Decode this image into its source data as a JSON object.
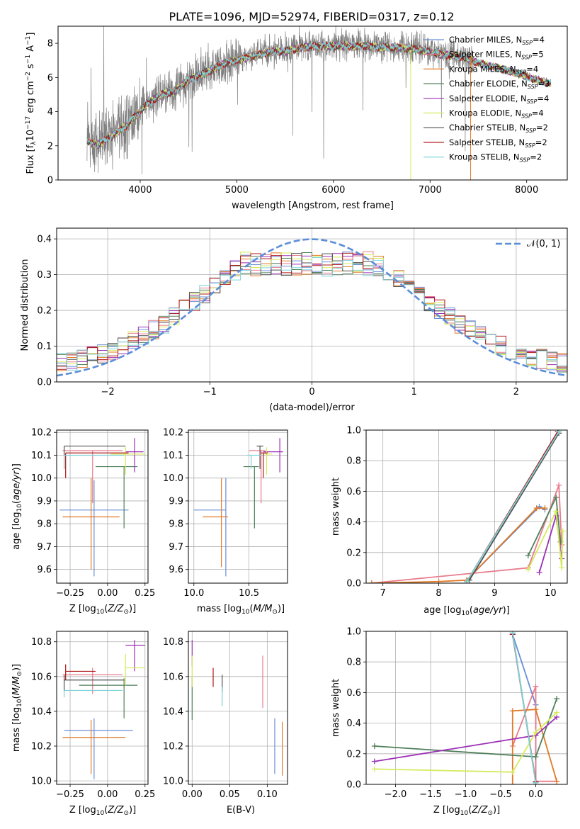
{
  "figure": {
    "title": "PLATE=1096, MJD=52974, FIBERID=0317, z=0.12"
  },
  "colors": {
    "Chabrier MILES": "#6a8fd8",
    "Salpeter MILES": "#e87b8c",
    "Kroupa MILES": "#e07a26",
    "Chabrier ELODIE": "#4f7f5a",
    "Salpeter ELODIE": "#9b30b5",
    "Kroupa ELODIE": "#d6ea5c",
    "Chabrier STELIB": "#505050",
    "Salpeter STELIB": "#b01616",
    "Kroupa STELIB": "#7fd3d8",
    "data": "#808080",
    "normal": "#5b8ed8"
  },
  "chart_data": [
    {
      "id": "spectrum",
      "type": "line",
      "xlabel": "wavelength [Angstrom, rest frame]",
      "ylabel": "Flux [f_λ 10^-17 erg cm^-2 s^-1 A^-1]",
      "xlim": [
        3150,
        8420
      ],
      "ylim": [
        0,
        9
      ],
      "xticks": [
        4000,
        5000,
        6000,
        7000,
        8000
      ],
      "yticks": [
        0,
        2,
        4,
        6,
        8
      ],
      "grid": false,
      "legend_position": "upper-right",
      "legend": [
        {
          "label": "Chabrier MILES, N_SSP=4",
          "key": "Chabrier MILES"
        },
        {
          "label": "Salpeter MILES, N_SSP=5",
          "key": "Salpeter MILES"
        },
        {
          "label": "Kroupa MILES, N_SSP=4",
          "key": "Kroupa MILES"
        },
        {
          "label": "Chabrier ELODIE, N_SSP=3",
          "key": "Chabrier ELODIE"
        },
        {
          "label": "Salpeter ELODIE, N_SSP=4",
          "key": "Salpeter ELODIE"
        },
        {
          "label": "Kroupa ELODIE, N_SSP=4",
          "key": "Kroupa ELODIE"
        },
        {
          "label": "Chabrier STELIB, N_SSP=2",
          "key": "Chabrier STELIB"
        },
        {
          "label": "Salpeter STELIB, N_SSP=2",
          "key": "Salpeter STELIB"
        },
        {
          "label": "Kroupa STELIB, N_SSP=2",
          "key": "Kroupa STELIB"
        }
      ],
      "continuum": {
        "x": [
          3450,
          3550,
          3650,
          3750,
          3850,
          3950,
          4050,
          4150,
          4250,
          4350,
          4500,
          4700,
          4900,
          5100,
          5300,
          5500,
          5700,
          5900,
          6100,
          6300,
          6500,
          6700,
          6900,
          7100,
          7300,
          7500,
          7700,
          7900,
          8100,
          8250
        ],
        "y": [
          2.3,
          2.1,
          2.4,
          2.8,
          3.2,
          3.8,
          4.4,
          4.8,
          5.1,
          5.2,
          5.9,
          6.4,
          6.9,
          7.2,
          7.5,
          7.6,
          7.8,
          7.9,
          7.9,
          7.9,
          7.8,
          7.8,
          7.7,
          7.4,
          7.3,
          6.9,
          6.6,
          6.3,
          5.9,
          5.7
        ]
      },
      "model_xrange": [
        3450,
        8250
      ],
      "data_xrange": [
        3450,
        7450
      ]
    },
    {
      "id": "residuals",
      "type": "histogram",
      "xlabel": "(data-model)/error",
      "ylabel": "Normed distribution",
      "xlim": [
        -2.5,
        2.5
      ],
      "ylim": [
        0,
        0.43
      ],
      "xticks": [
        -2,
        -1,
        0,
        1,
        2
      ],
      "yticks": [
        0.0,
        0.1,
        0.2,
        0.3,
        0.4
      ],
      "grid": true,
      "legend_position": "upper-right",
      "legend_label": "𝒩(0, 1)",
      "bin_width": 0.1,
      "normal": {
        "mean": 0,
        "sigma": 1
      }
    },
    {
      "id": "age-vs-Z",
      "type": "errorbar",
      "xlabel": "Z [log10(Z/Z⊙)]",
      "ylabel": "age [log10(age/yr)]",
      "xlim": [
        -0.34,
        0.27
      ],
      "ylim": [
        9.54,
        10.21
      ],
      "xticks": [
        -0.25,
        0.0,
        0.25
      ],
      "yticks": [
        9.6,
        9.7,
        9.8,
        9.9,
        10.0,
        10.1,
        10.2
      ],
      "grid": true,
      "points": [
        {
          "key": "Chabrier MILES",
          "x": -0.09,
          "y": 9.86,
          "xerr": [
            0.23,
            0.23
          ],
          "yerr": [
            0.29,
            0.13
          ]
        },
        {
          "key": "Salpeter MILES",
          "x": -0.1,
          "y": 10.12,
          "xerr": [
            0.2,
            0.2
          ],
          "yerr": [
            0.23,
            0.0
          ]
        },
        {
          "key": "Kroupa MILES",
          "x": -0.11,
          "y": 9.83,
          "xerr": [
            0.19,
            0.19
          ],
          "yerr": [
            0.23,
            0.17
          ]
        },
        {
          "key": "Chabrier ELODIE",
          "x": 0.11,
          "y": 10.05,
          "xerr": [
            0.19,
            0.09
          ],
          "yerr": [
            0.27,
            0.0
          ]
        },
        {
          "key": "Salpeter ELODIE",
          "x": 0.18,
          "y": 10.115,
          "xerr": [
            0.06,
            0.06
          ],
          "yerr": [
            0.09,
            0.06
          ]
        },
        {
          "key": "Kroupa ELODIE",
          "x": 0.12,
          "y": 10.105,
          "xerr": [
            0.1,
            0.13
          ],
          "yerr": [
            0.09,
            0.03
          ]
        },
        {
          "key": "Chabrier STELIB",
          "x": -0.29,
          "y": 10.14,
          "xerr": [
            0.0,
            0.41
          ],
          "yerr": [
            0.1,
            0.0
          ]
        },
        {
          "key": "Salpeter STELIB",
          "x": -0.28,
          "y": 10.11,
          "xerr": [
            0.0,
            0.42
          ],
          "yerr": [
            0.11,
            0.0
          ]
        },
        {
          "key": "Kroupa STELIB",
          "x": -0.29,
          "y": 10.1,
          "xerr": [
            0.0,
            0.4
          ],
          "yerr": [
            0.06,
            0.0
          ]
        }
      ]
    },
    {
      "id": "age-vs-mass",
      "type": "errorbar",
      "xlabel": "mass [log10(M/M⊙)]",
      "ylabel": "",
      "xlim": [
        9.95,
        10.85
      ],
      "ylim": [
        9.54,
        10.21
      ],
      "xticks": [
        10.0,
        10.5
      ],
      "yticks": [
        9.6,
        9.7,
        9.8,
        9.9,
        10.0,
        10.1,
        10.2
      ],
      "grid": true,
      "points": [
        {
          "key": "Chabrier MILES",
          "x": 10.29,
          "y": 9.86,
          "xerr": [
            0.29,
            0.0
          ],
          "yerr": [
            0.29,
            0.14
          ]
        },
        {
          "key": "Salpeter MILES",
          "x": 10.61,
          "y": 10.12,
          "xerr": [
            0.11,
            0.04
          ],
          "yerr": [
            0.23,
            0.0
          ]
        },
        {
          "key": "Kroupa MILES",
          "x": 10.25,
          "y": 9.83,
          "xerr": [
            0.17,
            0.06
          ],
          "yerr": [
            0.22,
            0.17
          ]
        },
        {
          "key": "Chabrier ELODIE",
          "x": 10.55,
          "y": 10.05,
          "xerr": [
            0.1,
            0.04
          ],
          "yerr": [
            0.27,
            0.0
          ]
        },
        {
          "key": "Salpeter ELODIE",
          "x": 10.78,
          "y": 10.115,
          "xerr": [
            0.15,
            0.03
          ],
          "yerr": [
            0.09,
            0.06
          ]
        },
        {
          "key": "Kroupa ELODIE",
          "x": 10.66,
          "y": 10.105,
          "xerr": [
            0.03,
            0.05
          ],
          "yerr": [
            0.09,
            0.03
          ]
        },
        {
          "key": "Chabrier STELIB",
          "x": 10.6,
          "y": 10.14,
          "xerr": [
            0.03,
            0.03
          ],
          "yerr": [
            0.1,
            0.0
          ]
        },
        {
          "key": "Salpeter STELIB",
          "x": 10.63,
          "y": 10.11,
          "xerr": [
            0.02,
            0.04
          ],
          "yerr": [
            0.11,
            0.0
          ]
        },
        {
          "key": "Kroupa STELIB",
          "x": 10.52,
          "y": 10.1,
          "xerr": [
            0.04,
            0.09
          ],
          "yerr": [
            0.06,
            0.0
          ]
        }
      ]
    },
    {
      "id": "weight-vs-age",
      "type": "line",
      "xlabel": "age [log10(age/yr)]",
      "ylabel": "mass weight",
      "xlim": [
        6.7,
        10.3
      ],
      "ylim": [
        0,
        1
      ],
      "xticks": [
        7,
        8,
        9,
        10
      ],
      "yticks": [
        0.0,
        0.2,
        0.4,
        0.6,
        0.8,
        1.0
      ],
      "grid": true,
      "series": [
        {
          "key": "Chabrier MILES",
          "x": [
            8.5,
            9.8,
            9.9
          ],
          "y": [
            0.02,
            0.5,
            0.48
          ]
        },
        {
          "key": "Salpeter MILES",
          "x": [
            6.8,
            9.6,
            10.15,
            10.2
          ],
          "y": [
            0.0,
            0.1,
            0.64,
            0.25
          ]
        },
        {
          "key": "Kroupa MILES",
          "x": [
            6.8,
            8.0,
            8.5,
            9.75,
            9.9
          ],
          "y": [
            0.0,
            0.01,
            0.02,
            0.49,
            0.49
          ]
        },
        {
          "key": "Chabrier ELODIE",
          "x": [
            9.6,
            10.1,
            10.18
          ],
          "y": [
            0.18,
            0.56,
            0.27
          ]
        },
        {
          "key": "Salpeter ELODIE",
          "x": [
            9.8,
            10.1,
            10.2
          ],
          "y": [
            0.07,
            0.44,
            0.16
          ]
        },
        {
          "key": "Kroupa ELODIE",
          "x": [
            9.6,
            10.1,
            10.2,
            10.22
          ],
          "y": [
            0.09,
            0.47,
            0.1,
            0.34
          ]
        },
        {
          "key": "Chabrier STELIB",
          "x": [
            8.55,
            10.15
          ],
          "y": [
            0.02,
            0.98
          ]
        },
        {
          "key": "Salpeter STELIB",
          "x": [
            8.5,
            10.13
          ],
          "y": [
            0.01,
            0.99
          ]
        },
        {
          "key": "Kroupa STELIB",
          "x": [
            8.5,
            10.15
          ],
          "y": [
            0.01,
            0.99
          ]
        }
      ]
    },
    {
      "id": "mass-vs-Z",
      "type": "errorbar",
      "xlabel": "Z [log10(Z/Z⊙)]",
      "ylabel": "mass [log10(M/M⊙)]",
      "xlim": [
        -0.34,
        0.27
      ],
      "ylim": [
        9.98,
        10.86
      ],
      "xticks": [
        -0.25,
        0.0,
        0.25
      ],
      "yticks": [
        10.0,
        10.2,
        10.4,
        10.6,
        10.8
      ],
      "grid": true,
      "points": [
        {
          "key": "Chabrier MILES",
          "x": -0.09,
          "y": 10.29,
          "xerr": [
            0.2,
            0.26
          ],
          "yerr": [
            0.28,
            0.07
          ]
        },
        {
          "key": "Salpeter MILES",
          "x": -0.1,
          "y": 10.61,
          "xerr": [
            0.2,
            0.2
          ],
          "yerr": [
            0.11,
            0.04
          ]
        },
        {
          "key": "Kroupa MILES",
          "x": -0.11,
          "y": 10.25,
          "xerr": [
            0.19,
            0.23
          ],
          "yerr": [
            0.21,
            0.1
          ]
        },
        {
          "key": "Chabrier ELODIE",
          "x": 0.11,
          "y": 10.55,
          "xerr": [
            0.3,
            0.09
          ],
          "yerr": [
            0.19,
            0.04
          ]
        },
        {
          "key": "Salpeter ELODIE",
          "x": 0.18,
          "y": 10.78,
          "xerr": [
            0.06,
            0.07
          ],
          "yerr": [
            0.15,
            0.03
          ]
        },
        {
          "key": "Kroupa ELODIE",
          "x": 0.12,
          "y": 10.65,
          "xerr": [
            0.0,
            0.13
          ],
          "yerr": [
            0.1,
            0.08
          ]
        },
        {
          "key": "Chabrier STELIB",
          "x": -0.29,
          "y": 10.58,
          "xerr": [
            0.0,
            0.4
          ],
          "yerr": [
            0.06,
            0.03
          ]
        },
        {
          "key": "Salpeter STELIB",
          "x": -0.28,
          "y": 10.63,
          "xerr": [
            0.0,
            0.2
          ],
          "yerr": [
            0.05,
            0.04
          ]
        },
        {
          "key": "Kroupa STELIB",
          "x": -0.29,
          "y": 10.52,
          "xerr": [
            0.0,
            0.39
          ],
          "yerr": [
            0.04,
            0.0
          ]
        }
      ]
    },
    {
      "id": "mass-vs-ebv",
      "type": "errorbar",
      "xlabel": "E(B-V)",
      "ylabel": "",
      "xlim": [
        -0.005,
        0.127
      ],
      "ylim": [
        9.98,
        10.86
      ],
      "xticks": [
        0.0,
        0.05,
        0.1
      ],
      "yticks": [
        10.0,
        10.2,
        10.4,
        10.6,
        10.8
      ],
      "grid": true,
      "points": [
        {
          "key": "Chabrier MILES",
          "x": 0.11,
          "y": 10.2,
          "xerr": [
            0,
            0
          ],
          "yerr": [
            0.16,
            0.16
          ]
        },
        {
          "key": "Salpeter MILES",
          "x": 0.094,
          "y": 10.58,
          "xerr": [
            0,
            0
          ],
          "yerr": [
            0.16,
            0.14
          ]
        },
        {
          "key": "Kroupa MILES",
          "x": 0.12,
          "y": 10.2,
          "xerr": [
            0,
            0
          ],
          "yerr": [
            0.17,
            0.14
          ]
        },
        {
          "key": "Chabrier ELODIE",
          "x": 0.0,
          "y": 10.45,
          "xerr": [
            0,
            0
          ],
          "yerr": [
            0.1,
            0.15
          ]
        },
        {
          "key": "Salpeter ELODIE",
          "x": 0.0,
          "y": 10.7,
          "xerr": [
            0,
            0
          ],
          "yerr": [
            0.04,
            0.11
          ]
        },
        {
          "key": "Kroupa ELODIE",
          "x": 0.0,
          "y": 10.6,
          "xerr": [
            0,
            0
          ],
          "yerr": [
            0.06,
            0.12
          ]
        },
        {
          "key": "Chabrier STELIB",
          "x": 0.04,
          "y": 10.55,
          "xerr": [
            0,
            0
          ],
          "yerr": [
            0.04,
            0.06
          ]
        },
        {
          "key": "Salpeter STELIB",
          "x": 0.028,
          "y": 10.6,
          "xerr": [
            0,
            0
          ],
          "yerr": [
            0.06,
            0.05
          ]
        },
        {
          "key": "Kroupa STELIB",
          "x": 0.04,
          "y": 10.5,
          "xerr": [
            0,
            0
          ],
          "yerr": [
            0.07,
            0.04
          ]
        }
      ]
    },
    {
      "id": "weight-vs-Z",
      "type": "line",
      "xlabel": "Z [log10(Z/Z⊙)]",
      "ylabel": "mass weight",
      "xlim": [
        -2.42,
        0.45
      ],
      "ylim": [
        0,
        1
      ],
      "xticks": [
        -2.0,
        -1.5,
        -1.0,
        -0.5,
        0.0
      ],
      "yticks": [
        0.0,
        0.2,
        0.4,
        0.6,
        0.8,
        1.0
      ],
      "grid": true,
      "series": [
        {
          "key": "Chabrier MILES",
          "x": [
            -0.33,
            0.0,
            0.0
          ],
          "y": [
            0.98,
            0.52,
            0.01
          ]
        },
        {
          "key": "Salpeter MILES",
          "x": [
            -0.33,
            0.0,
            0.0,
            0.3
          ],
          "y": [
            0.25,
            0.64,
            0.02,
            0.02
          ]
        },
        {
          "key": "Kroupa MILES",
          "x": [
            -0.33,
            -0.33,
            0.0,
            0.3
          ],
          "y": [
            0.0,
            0.48,
            0.49,
            0.02
          ]
        },
        {
          "key": "Chabrier ELODIE",
          "x": [
            -2.3,
            0.0,
            0.3
          ],
          "y": [
            0.25,
            0.18,
            0.56
          ]
        },
        {
          "key": "Salpeter ELODIE",
          "x": [
            -2.3,
            0.0,
            0.3
          ],
          "y": [
            0.15,
            0.32,
            0.44
          ]
        },
        {
          "key": "Kroupa ELODIE",
          "x": [
            -2.3,
            -0.33,
            0.0,
            0.3
          ],
          "y": [
            0.1,
            0.08,
            0.34,
            0.47
          ]
        },
        {
          "key": "Chabrier STELIB",
          "x": [
            -0.33,
            0.0
          ],
          "y": [
            0.99,
            0.01
          ]
        },
        {
          "key": "Salpeter STELIB",
          "x": [
            -0.33,
            0.0
          ],
          "y": [
            0.98,
            0.02
          ]
        },
        {
          "key": "Kroupa STELIB",
          "x": [
            -0.33,
            0.0
          ],
          "y": [
            0.99,
            0.01
          ]
        }
      ]
    }
  ]
}
